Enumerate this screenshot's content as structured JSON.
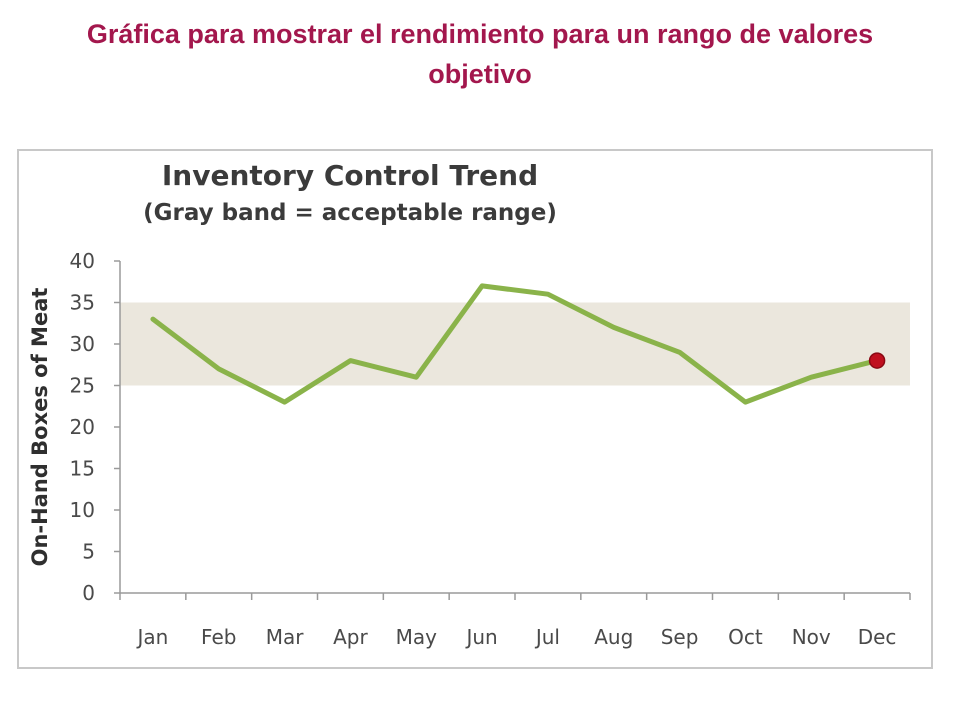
{
  "page": {
    "title": "Gráfica para mostrar el rendimiento para un rango de valores objetivo"
  },
  "chart_data": {
    "type": "line",
    "title": "Inventory Control Trend",
    "subtitle": "(Gray band = acceptable range)",
    "xlabel": "",
    "ylabel": "On-Hand Boxes  of Meat",
    "categories": [
      "Jan",
      "Feb",
      "Mar",
      "Apr",
      "May",
      "Jun",
      "Jul",
      "Aug",
      "Sep",
      "Oct",
      "Nov",
      "Dec"
    ],
    "series": [
      {
        "values": [
          33,
          27,
          23,
          28,
          26,
          37,
          36,
          32,
          29,
          23,
          26,
          28
        ]
      }
    ],
    "ylim": [
      0,
      40
    ],
    "yticks": [
      0,
      5,
      10,
      15,
      20,
      25,
      30,
      35,
      40
    ],
    "band": {
      "low": 25,
      "high": 35
    },
    "highlight_last_point": true,
    "colors": {
      "line": "#8ab34a",
      "band": "#ebe7dd",
      "marker": "#c0101f",
      "axis": "#9a9a9a"
    },
    "grid": false,
    "legend": "none"
  }
}
